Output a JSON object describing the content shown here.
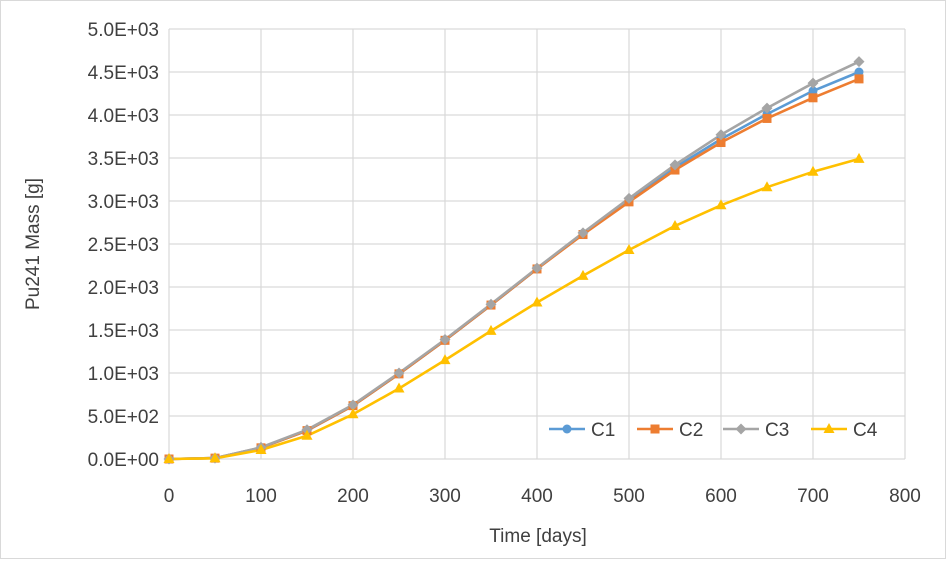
{
  "chart_data": {
    "type": "line",
    "title": "",
    "xlabel": "Time [days]",
    "ylabel": "Pu241 Mass [g]",
    "xlim": [
      0,
      800
    ],
    "ylim": [
      0,
      5000
    ],
    "x_ticks": [
      0,
      100,
      200,
      300,
      400,
      500,
      600,
      700,
      800
    ],
    "x_tick_labels": [
      "0",
      "100",
      "200",
      "300",
      "400",
      "500",
      "600",
      "700",
      "800"
    ],
    "y_ticks": [
      0,
      500,
      1000,
      1500,
      2000,
      2500,
      3000,
      3500,
      4000,
      4500,
      5000
    ],
    "y_tick_labels": [
      "0.0E+00",
      "5.0E+02",
      "1.0E+03",
      "1.5E+03",
      "2.0E+03",
      "2.5E+03",
      "3.0E+03",
      "3.5E+03",
      "4.0E+03",
      "4.5E+03",
      "5.0E+03"
    ],
    "grid": true,
    "legend_position": "bottom-right",
    "x": [
      0,
      50,
      100,
      150,
      200,
      250,
      300,
      350,
      400,
      450,
      500,
      550,
      600,
      650,
      700,
      750
    ],
    "series": [
      {
        "name": "C1",
        "color": "#5b9bd5",
        "marker": "circle",
        "values": [
          0,
          10,
          130,
          330,
          620,
          990,
          1380,
          1790,
          2210,
          2620,
          3010,
          3390,
          3720,
          4010,
          4280,
          4500
        ]
      },
      {
        "name": "C2",
        "color": "#ed7d31",
        "marker": "square",
        "values": [
          0,
          10,
          130,
          330,
          620,
          990,
          1380,
          1790,
          2210,
          2610,
          2990,
          3360,
          3680,
          3960,
          4200,
          4420
        ]
      },
      {
        "name": "C3",
        "color": "#a5a5a5",
        "marker": "diamond",
        "values": [
          0,
          10,
          135,
          340,
          630,
          1000,
          1390,
          1800,
          2220,
          2630,
          3030,
          3420,
          3770,
          4080,
          4370,
          4620
        ]
      },
      {
        "name": "C4",
        "color": "#ffc000",
        "marker": "triangle",
        "values": [
          0,
          8,
          105,
          270,
          520,
          820,
          1150,
          1490,
          1820,
          2130,
          2430,
          2710,
          2950,
          3160,
          3340,
          3490
        ]
      }
    ]
  }
}
